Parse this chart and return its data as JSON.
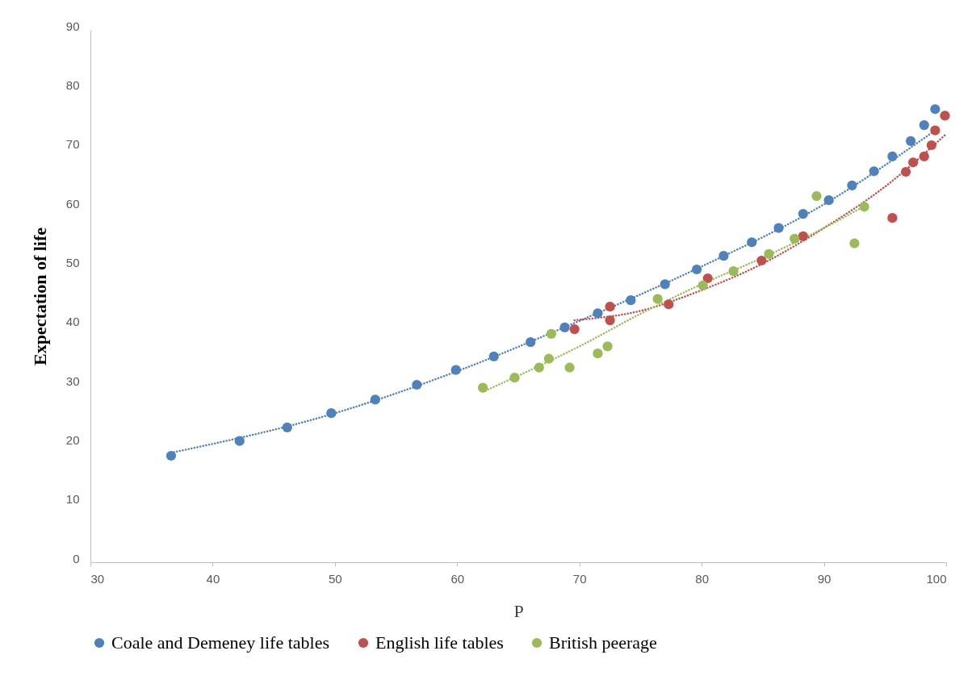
{
  "chart_data": {
    "type": "scatter",
    "xlabel": "P",
    "ylabel": "Expectation of life",
    "xlim": [
      30,
      100
    ],
    "ylim": [
      0,
      90
    ],
    "xticks": [
      30,
      40,
      50,
      60,
      70,
      80,
      90,
      100
    ],
    "yticks": [
      0,
      10,
      20,
      30,
      40,
      50,
      60,
      70,
      80,
      90
    ],
    "grid": false,
    "legend": "bottom",
    "series": [
      {
        "name": "Coale and Demeney life tables",
        "color": "#4f81bd",
        "marker": "circle",
        "x": [
          36.6,
          42.2,
          46.1,
          49.7,
          53.3,
          56.7,
          59.9,
          63.0,
          66.0,
          68.8,
          71.5,
          74.2,
          77.0,
          79.6,
          81.8,
          84.1,
          86.3,
          88.3,
          90.4,
          92.3,
          94.1,
          95.6,
          97.1,
          98.2,
          99.1
        ],
        "values": [
          18.0,
          20.5,
          22.8,
          25.2,
          27.5,
          30.0,
          32.5,
          34.8,
          37.2,
          39.7,
          42.1,
          44.3,
          47.0,
          49.5,
          51.8,
          54.1,
          56.5,
          58.9,
          61.2,
          63.7,
          66.1,
          68.6,
          71.2,
          73.9,
          76.6
        ]
      },
      {
        "name": "English life tables",
        "color": "#c0504d",
        "marker": "circle",
        "x": [
          69.6,
          72.5,
          72.5,
          77.3,
          80.5,
          84.9,
          88.3,
          95.6,
          96.7,
          97.3,
          98.2,
          98.8,
          99.1,
          99.9
        ],
        "values": [
          39.4,
          43.2,
          40.9,
          43.6,
          48.0,
          51.0,
          55.1,
          58.2,
          66.0,
          67.6,
          68.6,
          70.5,
          73.0,
          75.5
        ]
      },
      {
        "name": "British peerage",
        "color": "#9bbb59",
        "marker": "circle",
        "x": [
          62.1,
          64.7,
          66.7,
          67.5,
          67.7,
          69.2,
          71.5,
          72.3,
          76.4,
          80.1,
          82.6,
          85.5,
          87.6,
          89.4,
          92.5,
          93.3
        ],
        "values": [
          29.5,
          31.2,
          32.9,
          34.4,
          38.6,
          32.9,
          35.3,
          36.5,
          44.5,
          46.8,
          49.2,
          52.1,
          54.7,
          61.9,
          53.9,
          60.1
        ]
      },
      {
        "type": "line",
        "line_style": "dotted",
        "color": "#4f81bd",
        "x": [
          36.6,
          50,
          60,
          70,
          80,
          90,
          99.1
        ],
        "values": [
          18.5,
          25.2,
          32.3,
          40.8,
          50.0,
          60.5,
          73.0
        ]
      },
      {
        "type": "line",
        "line_style": "dotted",
        "color": "#c0504d",
        "x": [
          69.6,
          75,
          80,
          85,
          90,
          95,
          99.9
        ],
        "values": [
          40.9,
          42.5,
          46.0,
          50.5,
          56.5,
          63.5,
          72.2
        ]
      },
      {
        "type": "line",
        "line_style": "dotted",
        "color": "#9bbb59",
        "x": [
          62.1,
          70,
          75,
          80,
          85,
          90,
          93.3
        ],
        "values": [
          28.8,
          36.5,
          42.0,
          47.0,
          51.5,
          56.5,
          60.2
        ]
      }
    ]
  }
}
